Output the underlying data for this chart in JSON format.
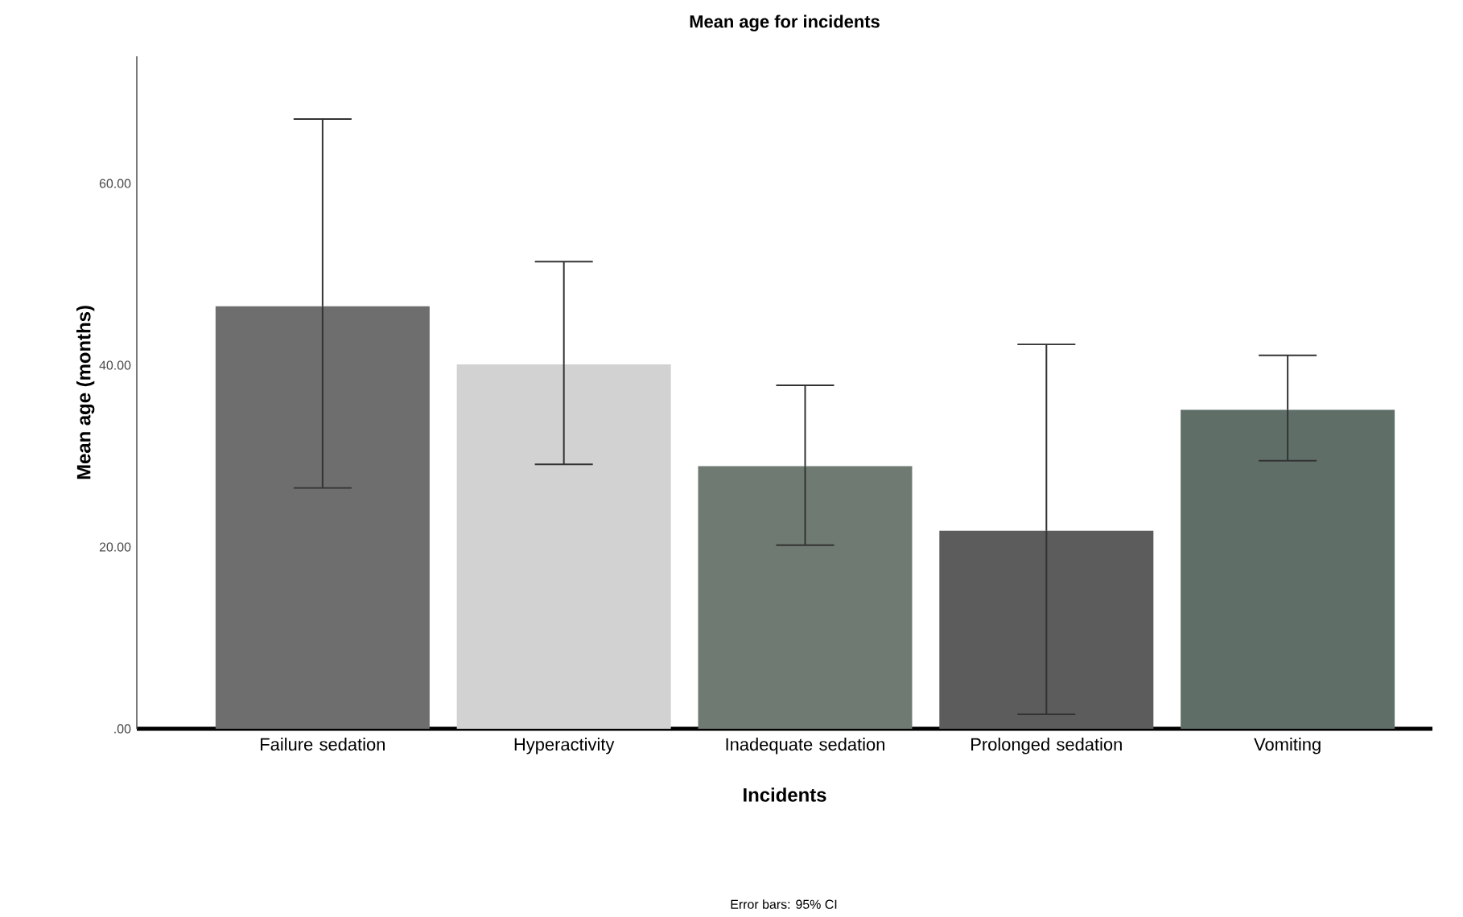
{
  "chart_data": {
    "type": "bar",
    "title": "Mean age for incidents",
    "xlabel": "Incidents",
    "ylabel": "Mean age (months)",
    "categories": [
      "Failure sedation",
      "Hyperactivity",
      "Inadequate sedation",
      "Prolonged sedation",
      "Vomiting"
    ],
    "values": [
      46.5,
      40.1,
      28.9,
      21.8,
      35.1
    ],
    "errors": [
      [
        26.5,
        67.1
      ],
      [
        29.1,
        51.4
      ],
      [
        20.2,
        37.8
      ],
      [
        1.6,
        42.3
      ],
      [
        29.5,
        41.1
      ]
    ],
    "colors": [
      "#6e6e6e",
      "#d2d2d2",
      "#6f7a72",
      "#5c5c5c",
      "#5f6f68"
    ],
    "ylim": [
      0,
      74
    ],
    "yticks": [
      {
        "value": 0,
        "label": ".00"
      },
      {
        "value": 20,
        "label": "20.00"
      },
      {
        "value": 40,
        "label": "40.00"
      },
      {
        "value": 60,
        "label": "60.00"
      }
    ],
    "annotations": [
      "Error bars: 95% CI"
    ]
  }
}
